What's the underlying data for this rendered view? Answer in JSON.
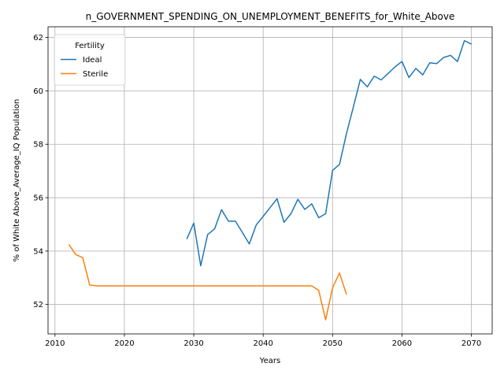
{
  "chart_data": {
    "type": "line",
    "title": "n_GOVERNMENT_SPENDING_ON_UNEMPLOYMENT_BENEFITS_for_White_Above",
    "xlabel": "Years",
    "ylabel": "% of White Above_Average_IQ Population",
    "xlim": [
      2009,
      2073
    ],
    "ylim": [
      50.9,
      62.4
    ],
    "xticks": [
      2010,
      2020,
      2030,
      2040,
      2050,
      2060,
      2070
    ],
    "yticks": [
      52,
      54,
      56,
      58,
      60,
      62
    ],
    "grid": true,
    "legend": {
      "title": "Fertility",
      "placement": "top-left"
    },
    "series": [
      {
        "name": "Ideal",
        "color": "#1f77b4",
        "x": [
          2029,
          2030,
          2031,
          2032,
          2033,
          2034,
          2035,
          2036,
          2037,
          2038,
          2039,
          2040,
          2041,
          2042,
          2043,
          2044,
          2045,
          2046,
          2047,
          2048,
          2049,
          2050,
          2051,
          2052,
          2053,
          2054,
          2055,
          2056,
          2057,
          2058,
          2059,
          2060,
          2061,
          2062,
          2063,
          2064,
          2065,
          2066,
          2067,
          2068,
          2069,
          2070
        ],
        "values": [
          54.45,
          55.05,
          53.45,
          54.62,
          54.83,
          55.55,
          55.12,
          55.12,
          54.7,
          54.27,
          54.98,
          55.3,
          55.63,
          55.96,
          55.08,
          55.4,
          55.94,
          55.56,
          55.77,
          55.25,
          55.4,
          57.02,
          57.25,
          58.4,
          59.4,
          60.43,
          60.15,
          60.55,
          60.41,
          60.65,
          60.9,
          61.1,
          60.5,
          60.84,
          60.6,
          61.05,
          61.02,
          61.25,
          61.33,
          61.1,
          61.88,
          61.75
        ]
      },
      {
        "name": "Sterile",
        "color": "#ff7f0e",
        "x": [
          2012,
          2013,
          2014,
          2015,
          2016,
          2017,
          2018,
          2019,
          2020,
          2021,
          2022,
          2023,
          2024,
          2025,
          2026,
          2027,
          2028,
          2029,
          2030,
          2031,
          2032,
          2033,
          2034,
          2035,
          2036,
          2037,
          2038,
          2039,
          2040,
          2041,
          2042,
          2043,
          2044,
          2045,
          2046,
          2047,
          2048,
          2049,
          2050,
          2051,
          2052
        ],
        "values": [
          54.25,
          53.87,
          53.76,
          52.73,
          52.7,
          52.7,
          52.7,
          52.7,
          52.7,
          52.7,
          52.7,
          52.7,
          52.7,
          52.7,
          52.7,
          52.7,
          52.7,
          52.7,
          52.7,
          52.7,
          52.7,
          52.7,
          52.7,
          52.7,
          52.7,
          52.7,
          52.7,
          52.7,
          52.7,
          52.7,
          52.7,
          52.7,
          52.7,
          52.7,
          52.7,
          52.7,
          52.53,
          51.43,
          52.63,
          53.18,
          52.38
        ]
      }
    ]
  }
}
